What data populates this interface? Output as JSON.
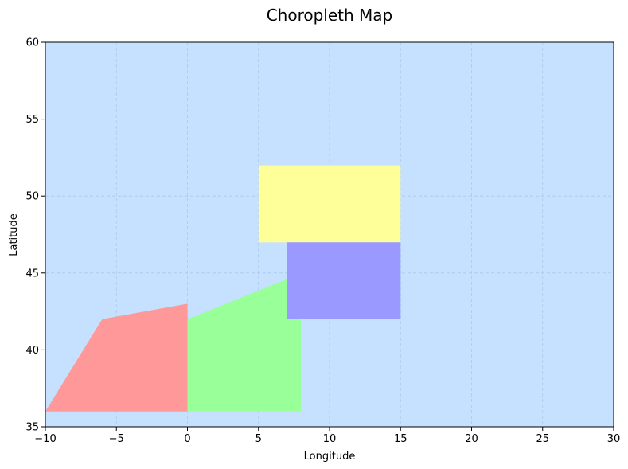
{
  "chart_data": {
    "type": "map",
    "title": "Choropleth Map",
    "xlabel": "Longitude",
    "ylabel": "Latitude",
    "xlim": [
      -10,
      30
    ],
    "ylim": [
      35,
      60
    ],
    "xticks": [
      -10,
      -5,
      0,
      5,
      10,
      15,
      20,
      25,
      30
    ],
    "yticks": [
      35,
      40,
      45,
      50,
      55,
      60
    ],
    "xtick_labels": [
      "−10",
      "−5",
      "0",
      "5",
      "10",
      "15",
      "20",
      "25",
      "30"
    ],
    "ytick_labels": [
      "35",
      "40",
      "45",
      "50",
      "55",
      "60"
    ],
    "grid": true,
    "background_color": "#c6e1ff",
    "grid_color": "#aac9e8",
    "regions": [
      {
        "color": "#ff9999",
        "coordinates": [
          [
            -10,
            36
          ],
          [
            -6,
            42
          ],
          [
            0,
            43
          ],
          [
            0,
            36
          ]
        ]
      },
      {
        "color": "#99ff99",
        "coordinates": [
          [
            0,
            36
          ],
          [
            0,
            42
          ],
          [
            7,
            44.6
          ],
          [
            8,
            44.6
          ],
          [
            8,
            36
          ]
        ]
      },
      {
        "color": "#ffff99",
        "coordinates": [
          [
            5,
            47
          ],
          [
            5,
            52
          ],
          [
            15,
            52
          ],
          [
            15,
            47
          ]
        ]
      },
      {
        "color": "#9999ff",
        "coordinates": [
          [
            7,
            42
          ],
          [
            7,
            47
          ],
          [
            15,
            47
          ],
          [
            15,
            42
          ]
        ]
      }
    ]
  }
}
